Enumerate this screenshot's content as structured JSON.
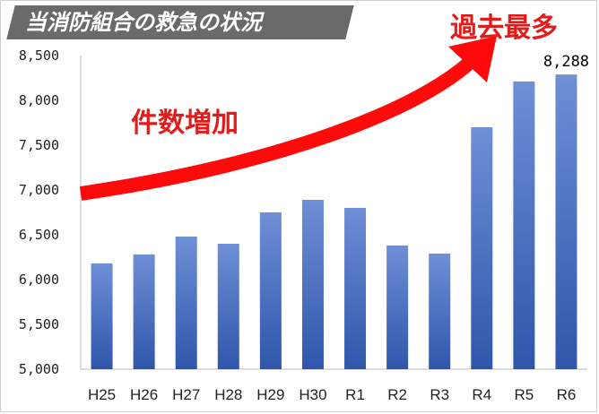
{
  "title": "当消防組合の救急の状況",
  "annotations": {
    "record": "過去最多",
    "increase": "件数増加"
  },
  "colors": {
    "bar_top": "#6f8fd6",
    "bar_bottom": "#2f56ab",
    "arrow": "#ff0a0a",
    "annotation_text": "#e41b1b",
    "title_bg": "#6a6a6a"
  },
  "chart_data": {
    "type": "bar",
    "categories": [
      "H25",
      "H26",
      "H27",
      "H28",
      "H29",
      "H30",
      "R1",
      "R2",
      "R3",
      "R4",
      "R5",
      "R6"
    ],
    "values": [
      6180,
      6280,
      6480,
      6400,
      6750,
      6890,
      6800,
      6380,
      6290,
      7700,
      8210,
      8288
    ],
    "ylim": [
      5000,
      8500
    ],
    "yticks": [
      5000,
      5500,
      6000,
      6500,
      7000,
      7500,
      8000,
      8500
    ],
    "ytick_labels": [
      "5,000",
      "5,500",
      "6,000",
      "6,500",
      "7,000",
      "7,500",
      "8,000",
      "8,500"
    ],
    "data_labels": [
      {
        "index": 11,
        "text": "8,288"
      }
    ],
    "grid": false,
    "legend": "none"
  }
}
